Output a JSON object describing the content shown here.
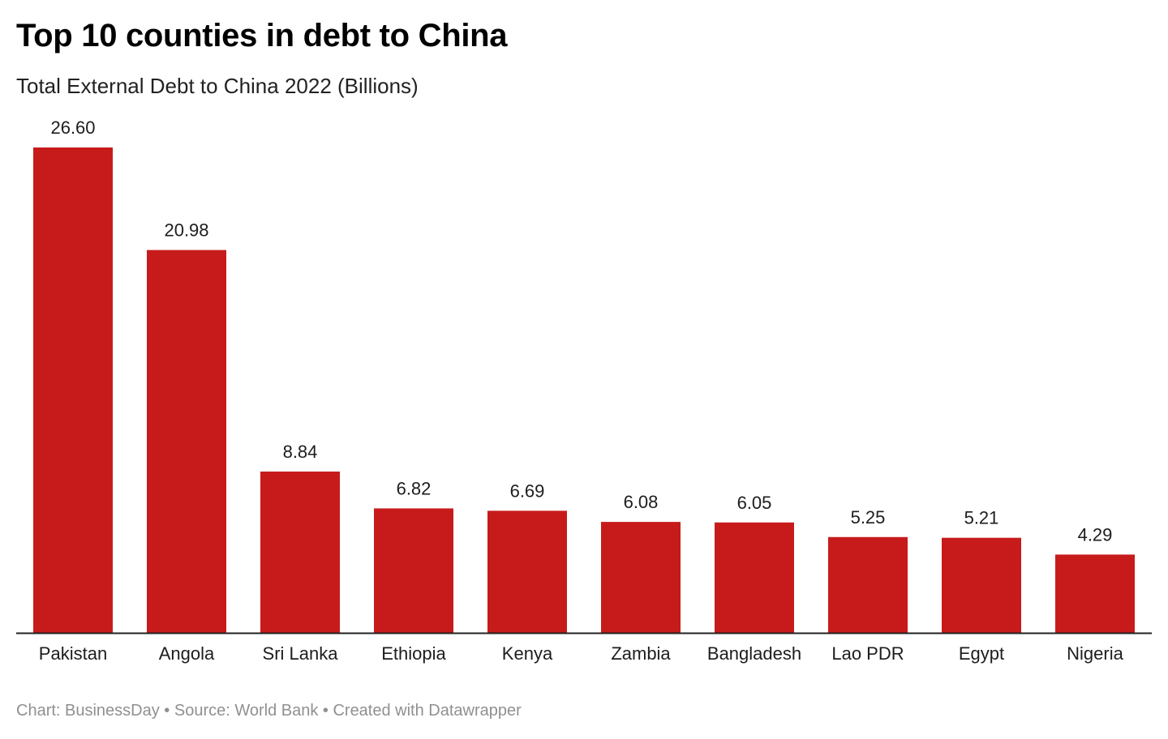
{
  "header": {
    "title": "Top 10 counties in debt to China",
    "subtitle": "Total External Debt to China 2022 (Billions)"
  },
  "footer": {
    "credit": "Chart: BusinessDay • Source: World Bank • Created with Datawrapper"
  },
  "colors": {
    "bar": "#c71b1b",
    "axis": "#222222"
  },
  "chart_data": {
    "type": "bar",
    "title": "Top 10 counties in debt to China",
    "subtitle": "Total External Debt to China 2022 (Billions)",
    "categories": [
      "Pakistan",
      "Angola",
      "Sri Lanka",
      "Ethiopia",
      "Kenya",
      "Zambia",
      "Bangladesh",
      "Lao PDR",
      "Egypt",
      "Nigeria"
    ],
    "values": [
      26.6,
      20.98,
      8.84,
      6.82,
      6.69,
      6.08,
      6.05,
      5.25,
      5.21,
      4.29
    ],
    "value_labels": [
      "26.60",
      "20.98",
      "8.84",
      "6.82",
      "6.69",
      "6.08",
      "6.05",
      "5.25",
      "5.21",
      "4.29"
    ],
    "ylim": [
      0,
      26.6
    ],
    "grid": false,
    "legend": "none"
  }
}
